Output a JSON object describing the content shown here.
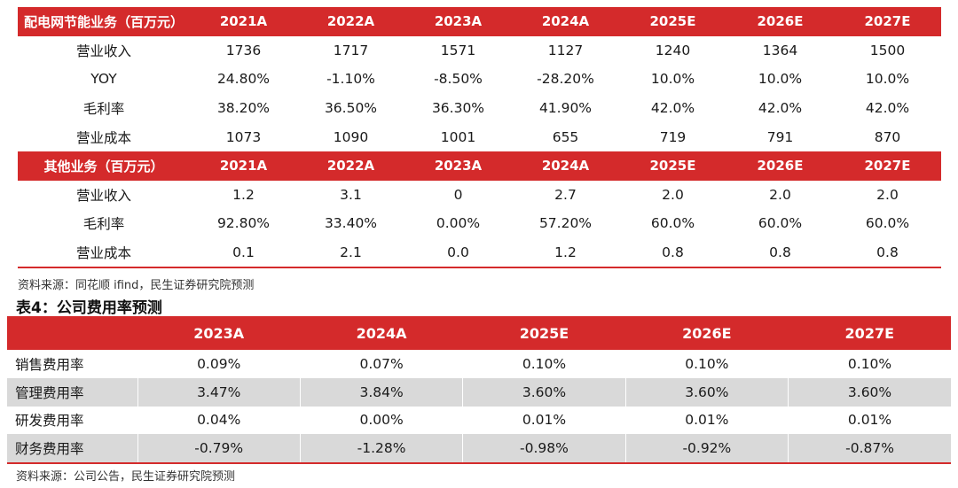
{
  "table1": {
    "section1": {
      "header": [
        "配电网节能业务（百万元）",
        "2021A",
        "2022A",
        "2023A",
        "2024A",
        "2025E",
        "2026E",
        "2027E"
      ],
      "rows": [
        {
          "label": "营业收入",
          "values": [
            "1736",
            "1717",
            "1571",
            "1127",
            "1240",
            "1364",
            "1500"
          ]
        },
        {
          "label": "YOY",
          "values": [
            "24.80%",
            "-1.10%",
            "-8.50%",
            "-28.20%",
            "10.0%",
            "10.0%",
            "10.0%"
          ]
        },
        {
          "label": "毛利率",
          "values": [
            "38.20%",
            "36.50%",
            "36.30%",
            "41.90%",
            "42.0%",
            "42.0%",
            "42.0%"
          ]
        },
        {
          "label": "营业成本",
          "values": [
            "1073",
            "1090",
            "1001",
            "655",
            "719",
            "791",
            "870"
          ]
        }
      ]
    },
    "section2": {
      "header": [
        "其他业务（百万元）",
        "2021A",
        "2022A",
        "2023A",
        "2024A",
        "2025E",
        "2026E",
        "2027E"
      ],
      "rows": [
        {
          "label": "营业收入",
          "values": [
            "1.2",
            "3.1",
            "0",
            "2.7",
            "2.0",
            "2.0",
            "2.0"
          ]
        },
        {
          "label": "毛利率",
          "values": [
            "92.80%",
            "33.40%",
            "0.00%",
            "57.20%",
            "60.0%",
            "60.0%",
            "60.0%"
          ]
        },
        {
          "label": "营业成本",
          "values": [
            "0.1",
            "2.1",
            "0.0",
            "1.2",
            "0.8",
            "0.8",
            "0.8"
          ]
        }
      ]
    },
    "source": "资料来源：同花顺 ifind，民生证券研究院预测"
  },
  "table2": {
    "title": "表4：公司费用率预测",
    "header": [
      "",
      "2023A",
      "2024A",
      "2025E",
      "2026E",
      "2027E"
    ],
    "rows": [
      {
        "label": "销售费用率",
        "values": [
          "0.09%",
          "0.07%",
          "0.10%",
          "0.10%",
          "0.10%"
        ]
      },
      {
        "label": "管理费用率",
        "values": [
          "3.47%",
          "3.84%",
          "3.60%",
          "3.60%",
          "3.60%"
        ]
      },
      {
        "label": "研发费用率",
        "values": [
          "0.04%",
          "0.00%",
          "0.01%",
          "0.01%",
          "0.01%"
        ]
      },
      {
        "label": "财务费用率",
        "values": [
          "-0.79%",
          "-1.28%",
          "-0.98%",
          "-0.92%",
          "-0.87%"
        ]
      }
    ],
    "source": "资料来源：公司公告，民生证券研究院预测"
  }
}
